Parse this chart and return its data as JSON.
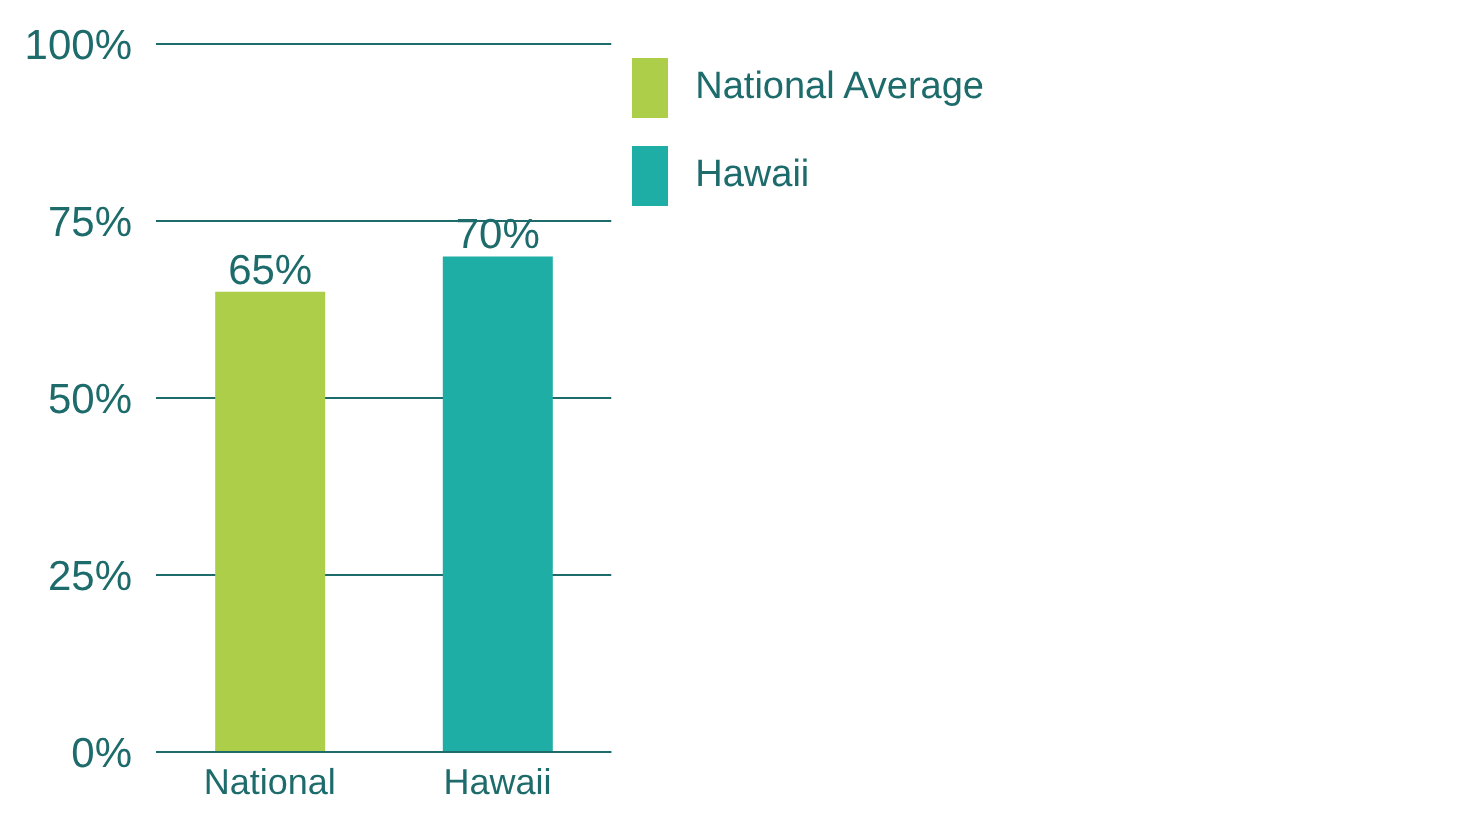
{
  "chart_data": {
    "type": "bar",
    "categories": [
      "National",
      "Hawaii"
    ],
    "series": [
      {
        "name": "National Average",
        "color": "#acce48",
        "values": [
          65,
          null
        ],
        "value_labels": [
          "65%",
          null
        ]
      },
      {
        "name": "Hawaii",
        "color": "#1eaea6",
        "values": [
          null,
          70
        ],
        "value_labels": [
          null,
          "70%"
        ]
      }
    ],
    "stacked": true,
    "ylim": [
      0,
      100
    ],
    "yticks": [
      {
        "value": 0,
        "label": "0%"
      },
      {
        "value": 25,
        "label": "25%"
      },
      {
        "value": 50,
        "label": "50%"
      },
      {
        "value": 75,
        "label": "75%"
      },
      {
        "value": 100,
        "label": "100%"
      }
    ],
    "grid": "y",
    "legend": "top right"
  }
}
